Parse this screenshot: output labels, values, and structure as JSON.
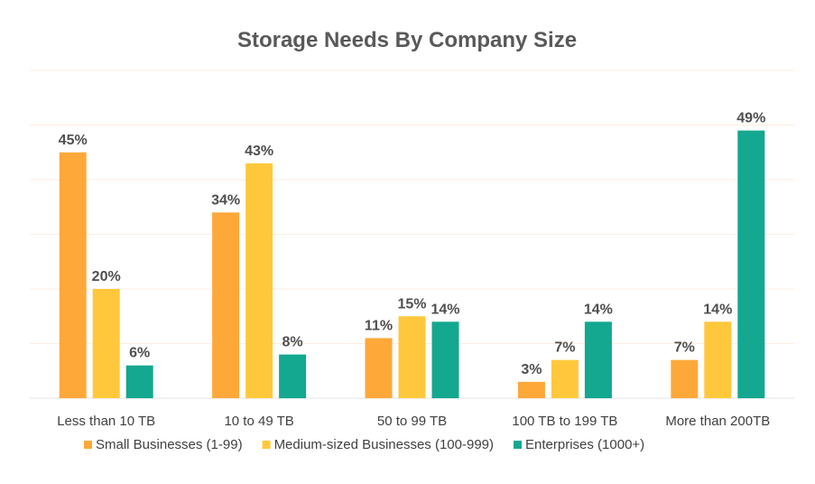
{
  "chart_data": {
    "type": "bar",
    "title": "Storage Needs By Company Size",
    "categories": [
      "Less than 10 TB",
      "10 to 49 TB",
      "50 to 99 TB",
      "100 TB to 199 TB",
      "More than 200TB"
    ],
    "series": [
      {
        "name": "Small Businesses (1-99)",
        "values": [
          45,
          34,
          11,
          3,
          7
        ],
        "color": "#FFA83A"
      },
      {
        "name": "Medium-sized Businesses (100-999)",
        "values": [
          20,
          43,
          15,
          7,
          14
        ],
        "color": "#FFC83C"
      },
      {
        "name": "Enterprises (1000+)",
        "values": [
          6,
          8,
          14,
          14,
          49
        ],
        "color": "#13A88F"
      }
    ],
    "value_suffix": "%",
    "ylim": [
      0,
      60
    ],
    "grid": true,
    "legend_position": "bottom",
    "xlabel": "",
    "ylabel": ""
  }
}
